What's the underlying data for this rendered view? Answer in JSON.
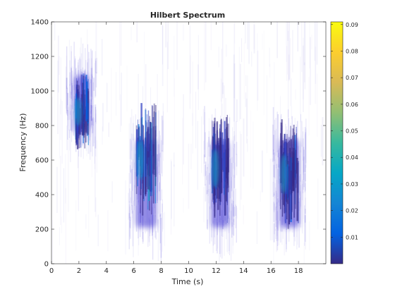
{
  "chart_data": {
    "type": "heatmap",
    "title": "Hilbert Spectrum",
    "xlabel": "Time (s)",
    "ylabel": "Frequency (Hz)",
    "xlim": [
      0,
      20
    ],
    "ylim": [
      0,
      1400
    ],
    "x_ticks": [
      0,
      2,
      4,
      6,
      8,
      10,
      12,
      14,
      16,
      18
    ],
    "y_ticks": [
      0,
      200,
      400,
      600,
      800,
      1000,
      1200,
      1400
    ],
    "colorbar": {
      "ticks": [
        0.01,
        0.02,
        0.03,
        0.04,
        0.05,
        0.06,
        0.07,
        0.08,
        0.09
      ],
      "range": [
        0.0,
        0.091
      ],
      "colormap": "parula",
      "colors": [
        "#352a87",
        "#0363e1",
        "#1485d4",
        "#06a7c6",
        "#38b99e",
        "#92bf73",
        "#d9ba56",
        "#fcce2e",
        "#f9fb0e"
      ]
    },
    "background_color": "#ffffff",
    "energy_clusters": [
      {
        "t_start": 1.5,
        "t_end": 2.9,
        "f_low": 700,
        "f_high": 1150,
        "f_peak": 880,
        "peak_value": 0.05
      },
      {
        "t_start": 6.0,
        "t_end": 7.8,
        "f_low": 150,
        "f_high": 780,
        "f_peak": 600,
        "peak_value": 0.06
      },
      {
        "t_start": 11.5,
        "t_end": 13.1,
        "f_low": 150,
        "f_high": 770,
        "f_peak": 550,
        "peak_value": 0.04
      },
      {
        "t_start": 16.5,
        "t_end": 18.2,
        "f_low": 150,
        "f_high": 780,
        "f_peak": 520,
        "peak_value": 0.035
      }
    ]
  }
}
